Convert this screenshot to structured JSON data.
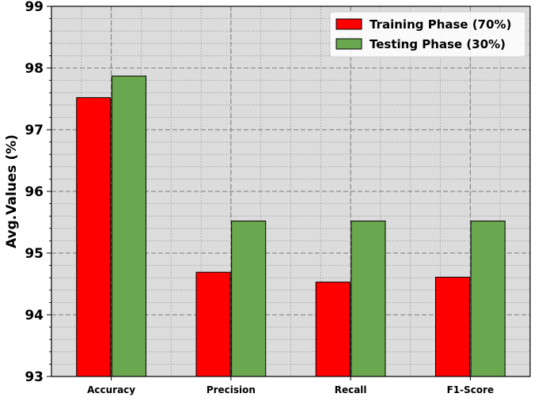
{
  "chart_data": {
    "type": "bar",
    "categories": [
      "Accuracy",
      "Precision",
      "Recall",
      "F1-Score"
    ],
    "series": [
      {
        "name": "Training Phase (70%)",
        "color": "#ff0000",
        "values": [
          97.52,
          94.69,
          94.53,
          94.61
        ]
      },
      {
        "name": "Testing Phase (30%)",
        "color": "#6aa84f",
        "values": [
          97.87,
          95.52,
          95.52,
          95.52
        ]
      }
    ],
    "title": "",
    "xlabel": "",
    "ylabel": "Avg.Values (%)",
    "ylim": [
      93,
      99
    ],
    "yticks": [
      "93",
      "94",
      "95",
      "96",
      "97",
      "98",
      "99"
    ],
    "ytick_values": [
      93,
      94,
      95,
      96,
      97,
      98,
      99
    ],
    "minor_ytick_step": 0.2,
    "grid": true,
    "legend_position": "top-right",
    "background_color": "#dcdcdc"
  }
}
